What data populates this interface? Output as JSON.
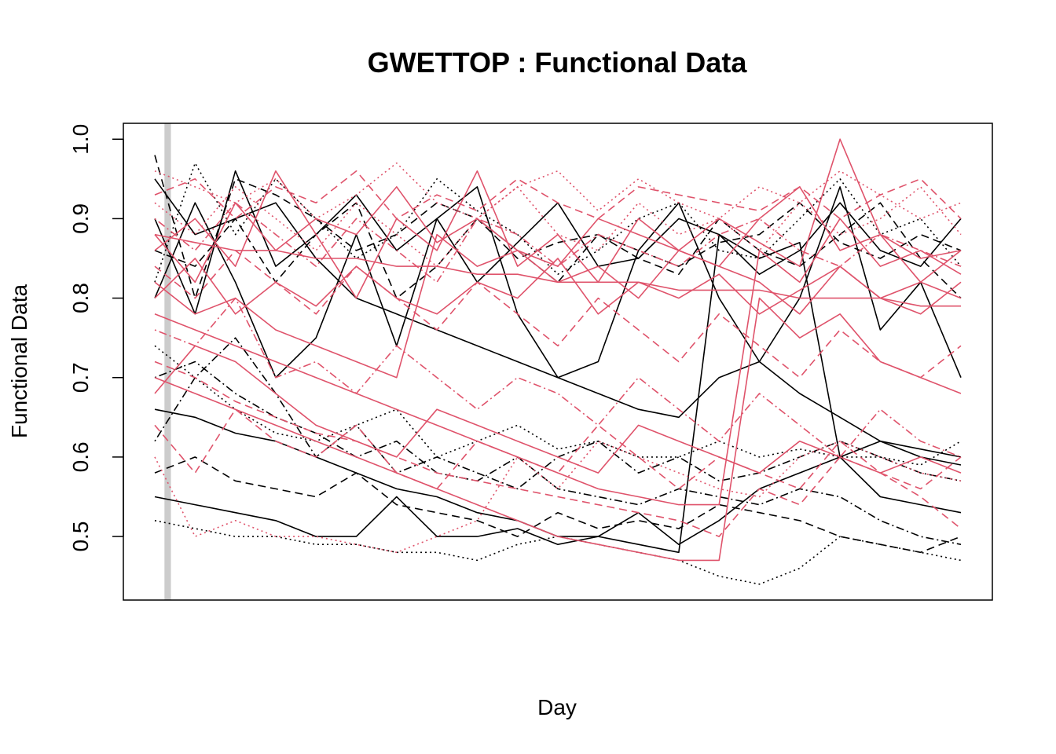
{
  "chart_data": {
    "type": "line",
    "title": "GWETTOP : Functional Data",
    "xlabel": "Day",
    "ylabel": "Functional Data",
    "ylim": [
      0.42,
      1.02
    ],
    "xlim": [
      0,
      100
    ],
    "yticks": [
      "0.5",
      "0.6",
      "0.7",
      "0.8",
      "0.9",
      "1.0"
    ],
    "grid": false,
    "legend": "none",
    "highlight_band": {
      "x": [
        1.2,
        2.0
      ],
      "color": "#cccccc"
    },
    "colors": {
      "group_a": "#000000",
      "group_b": "#df536b",
      "band": "#cccccc"
    },
    "series": [
      {
        "group": "a",
        "dash": "solid",
        "values": [
          0.55,
          0.54,
          0.53,
          0.52,
          0.5,
          0.5,
          0.55,
          0.5,
          0.5,
          0.51,
          0.49,
          0.5,
          0.53,
          0.49,
          0.52,
          0.56,
          0.58,
          0.6,
          0.62,
          0.61,
          0.6
        ]
      },
      {
        "group": "a",
        "dash": "dotted",
        "values": [
          0.52,
          0.51,
          0.5,
          0.5,
          0.49,
          0.49,
          0.48,
          0.48,
          0.47,
          0.49,
          0.5,
          0.49,
          0.48,
          0.47,
          0.45,
          0.44,
          0.46,
          0.5,
          0.49,
          0.48,
          0.47
        ]
      },
      {
        "group": "a",
        "dash": "dashed",
        "values": [
          0.58,
          0.6,
          0.57,
          0.56,
          0.55,
          0.58,
          0.54,
          0.53,
          0.52,
          0.5,
          0.53,
          0.51,
          0.52,
          0.51,
          0.54,
          0.53,
          0.52,
          0.5,
          0.49,
          0.48,
          0.5
        ]
      },
      {
        "group": "a",
        "dash": "solid",
        "values": [
          0.66,
          0.65,
          0.63,
          0.62,
          0.6,
          0.58,
          0.56,
          0.55,
          0.53,
          0.52,
          0.5,
          0.5,
          0.49,
          0.48,
          0.88,
          0.85,
          0.87,
          0.6,
          0.55,
          0.54,
          0.53
        ]
      },
      {
        "group": "a",
        "dash": "dashdot",
        "values": [
          0.7,
          0.72,
          0.68,
          0.65,
          0.63,
          0.6,
          0.62,
          0.58,
          0.57,
          0.6,
          0.56,
          0.55,
          0.54,
          0.56,
          0.55,
          0.54,
          0.56,
          0.55,
          0.52,
          0.5,
          0.49
        ]
      },
      {
        "group": "a",
        "dash": "solid",
        "values": [
          0.95,
          0.88,
          0.9,
          0.92,
          0.85,
          0.8,
          0.78,
          0.76,
          0.74,
          0.72,
          0.7,
          0.68,
          0.66,
          0.65,
          0.7,
          0.72,
          0.68,
          0.65,
          0.62,
          0.6,
          0.59
        ]
      },
      {
        "group": "a",
        "dash": "dashed",
        "values": [
          0.98,
          0.8,
          0.95,
          0.93,
          0.9,
          0.86,
          0.88,
          0.92,
          0.9,
          0.85,
          0.87,
          0.88,
          0.86,
          0.84,
          0.87,
          0.88,
          0.92,
          0.87,
          0.85,
          0.88,
          0.86
        ]
      },
      {
        "group": "a",
        "dash": "dotted",
        "values": [
          0.82,
          0.97,
          0.88,
          0.95,
          0.9,
          0.85,
          0.88,
          0.95,
          0.91,
          0.88,
          0.83,
          0.86,
          0.9,
          0.92,
          0.86,
          0.85,
          0.9,
          0.95,
          0.88,
          0.9,
          0.84
        ]
      },
      {
        "group": "a",
        "dash": "solid",
        "values": [
          0.9,
          0.78,
          0.96,
          0.84,
          0.88,
          0.93,
          0.86,
          0.9,
          0.82,
          0.87,
          0.92,
          0.84,
          0.85,
          0.9,
          0.88,
          0.83,
          0.86,
          0.92,
          0.86,
          0.84,
          0.9
        ]
      },
      {
        "group": "a",
        "dash": "dashdot",
        "values": [
          0.62,
          0.7,
          0.75,
          0.68,
          0.6,
          0.64,
          0.58,
          0.6,
          0.58,
          0.56,
          0.6,
          0.62,
          0.58,
          0.6,
          0.57,
          0.58,
          0.6,
          0.62,
          0.6,
          0.58,
          0.57
        ]
      },
      {
        "group": "a",
        "dash": "dashed",
        "values": [
          0.86,
          0.84,
          0.9,
          0.82,
          0.88,
          0.92,
          0.8,
          0.84,
          0.9,
          0.86,
          0.82,
          0.88,
          0.85,
          0.83,
          0.9,
          0.86,
          0.84,
          0.88,
          0.92,
          0.85,
          0.8
        ]
      },
      {
        "group": "a",
        "dash": "solid",
        "values": [
          0.8,
          0.92,
          0.82,
          0.7,
          0.75,
          0.88,
          0.74,
          0.9,
          0.94,
          0.78,
          0.7,
          0.72,
          0.86,
          0.92,
          0.8,
          0.72,
          0.8,
          0.94,
          0.76,
          0.82,
          0.7
        ]
      },
      {
        "group": "a",
        "dash": "dotted",
        "values": [
          0.74,
          0.7,
          0.66,
          0.63,
          0.62,
          0.64,
          0.66,
          0.6,
          0.62,
          0.64,
          0.61,
          0.62,
          0.6,
          0.6,
          0.62,
          0.6,
          0.61,
          0.6,
          0.6,
          0.59,
          0.62
        ]
      },
      {
        "group": "b",
        "dash": "solid",
        "values": [
          0.88,
          0.82,
          0.92,
          0.86,
          0.9,
          0.88,
          0.94,
          0.87,
          0.9,
          0.86,
          0.84,
          0.9,
          0.88,
          0.86,
          0.9,
          0.87,
          0.84,
          1.0,
          0.88,
          0.85,
          0.86
        ]
      },
      {
        "group": "b",
        "dash": "dashed",
        "values": [
          0.93,
          0.95,
          0.9,
          0.94,
          0.92,
          0.96,
          0.9,
          0.93,
          0.91,
          0.95,
          0.92,
          0.9,
          0.94,
          0.93,
          0.92,
          0.91,
          0.94,
          0.9,
          0.93,
          0.95,
          0.9
        ]
      },
      {
        "group": "b",
        "dash": "dotted",
        "values": [
          0.96,
          0.94,
          0.92,
          0.95,
          0.9,
          0.93,
          0.97,
          0.92,
          0.9,
          0.94,
          0.96,
          0.91,
          0.95,
          0.92,
          0.9,
          0.94,
          0.92,
          0.96,
          0.93,
          0.9,
          0.92
        ]
      },
      {
        "group": "b",
        "dash": "solid",
        "values": [
          0.88,
          0.87,
          0.86,
          0.86,
          0.85,
          0.85,
          0.84,
          0.84,
          0.83,
          0.83,
          0.82,
          0.82,
          0.82,
          0.81,
          0.81,
          0.81,
          0.8,
          0.8,
          0.8,
          0.79,
          0.79
        ]
      },
      {
        "group": "b",
        "dash": "dashdot",
        "values": [
          0.9,
          0.86,
          0.92,
          0.88,
          0.84,
          0.9,
          0.86,
          0.82,
          0.9,
          0.88,
          0.84,
          0.88,
          0.86,
          0.84,
          0.88,
          0.9,
          0.86,
          0.84,
          0.88,
          0.86,
          0.84
        ]
      },
      {
        "group": "b",
        "dash": "solid",
        "values": [
          0.78,
          0.76,
          0.74,
          0.72,
          0.7,
          0.68,
          0.66,
          0.64,
          0.62,
          0.6,
          0.58,
          0.56,
          0.55,
          0.54,
          0.54,
          0.86,
          0.82,
          0.9,
          0.84,
          0.86,
          0.83
        ]
      },
      {
        "group": "b",
        "dash": "dashed",
        "values": [
          0.72,
          0.7,
          0.67,
          0.65,
          0.63,
          0.62,
          0.6,
          0.58,
          0.57,
          0.56,
          0.55,
          0.54,
          0.53,
          0.52,
          0.5,
          0.56,
          0.54,
          0.6,
          0.58,
          0.55,
          0.51
        ]
      },
      {
        "group": "b",
        "dash": "solid",
        "values": [
          0.7,
          0.68,
          0.66,
          0.64,
          0.62,
          0.6,
          0.58,
          0.56,
          0.54,
          0.52,
          0.5,
          0.49,
          0.48,
          0.47,
          0.47,
          0.8,
          0.75,
          0.78,
          0.72,
          0.7,
          0.68
        ]
      },
      {
        "group": "b",
        "dash": "dotted",
        "values": [
          0.6,
          0.5,
          0.52,
          0.5,
          0.5,
          0.49,
          0.48,
          0.5,
          0.52,
          0.6,
          0.56,
          0.62,
          0.6,
          0.58,
          0.56,
          0.55,
          0.6,
          0.62,
          0.6,
          0.58,
          0.57
        ]
      },
      {
        "group": "b",
        "dash": "solid",
        "values": [
          0.82,
          0.78,
          0.8,
          0.76,
          0.74,
          0.72,
          0.7,
          0.88,
          0.84,
          0.86,
          0.82,
          0.84,
          0.8,
          0.86,
          0.84,
          0.82,
          0.78,
          0.84,
          0.8,
          0.82,
          0.8
        ]
      },
      {
        "group": "b",
        "dash": "dashdot",
        "values": [
          0.76,
          0.74,
          0.8,
          0.7,
          0.72,
          0.68,
          0.74,
          0.7,
          0.66,
          0.7,
          0.68,
          0.64,
          0.7,
          0.66,
          0.62,
          0.68,
          0.64,
          0.6,
          0.66,
          0.62,
          0.6
        ]
      },
      {
        "group": "b",
        "dash": "solid",
        "values": [
          0.86,
          0.9,
          0.84,
          0.96,
          0.88,
          0.8,
          0.9,
          0.86,
          0.96,
          0.84,
          0.88,
          0.82,
          0.9,
          0.86,
          0.84,
          0.9,
          0.94,
          0.86,
          0.88,
          0.82,
          0.86
        ]
      },
      {
        "group": "b",
        "dash": "dashed",
        "values": [
          0.84,
          0.8,
          0.86,
          0.82,
          0.78,
          0.84,
          0.8,
          0.76,
          0.82,
          0.78,
          0.74,
          0.8,
          0.76,
          0.72,
          0.78,
          0.74,
          0.7,
          0.76,
          0.72,
          0.7,
          0.74
        ]
      },
      {
        "group": "b",
        "dash": "solid",
        "values": [
          0.68,
          0.74,
          0.72,
          0.68,
          0.64,
          0.62,
          0.6,
          0.66,
          0.64,
          0.62,
          0.6,
          0.58,
          0.64,
          0.62,
          0.6,
          0.58,
          0.62,
          0.6,
          0.58,
          0.6,
          0.58
        ]
      },
      {
        "group": "b",
        "dash": "dotted",
        "values": [
          0.92,
          0.88,
          0.94,
          0.9,
          0.86,
          0.92,
          0.88,
          0.84,
          0.9,
          0.94,
          0.88,
          0.86,
          0.92,
          0.88,
          0.9,
          0.86,
          0.92,
          0.88,
          0.9,
          0.94,
          0.88
        ]
      },
      {
        "group": "b",
        "dash": "solid",
        "values": [
          0.8,
          0.85,
          0.78,
          0.82,
          0.79,
          0.84,
          0.8,
          0.78,
          0.82,
          0.8,
          0.85,
          0.78,
          0.82,
          0.8,
          0.83,
          0.78,
          0.81,
          0.84,
          0.8,
          0.78,
          0.82
        ]
      },
      {
        "group": "b",
        "dash": "dashed",
        "values": [
          0.64,
          0.58,
          0.66,
          0.62,
          0.6,
          0.64,
          0.58,
          0.56,
          0.62,
          0.6,
          0.58,
          0.64,
          0.6,
          0.56,
          0.6,
          0.58,
          0.56,
          0.62,
          0.58,
          0.56,
          0.6
        ]
      }
    ]
  }
}
